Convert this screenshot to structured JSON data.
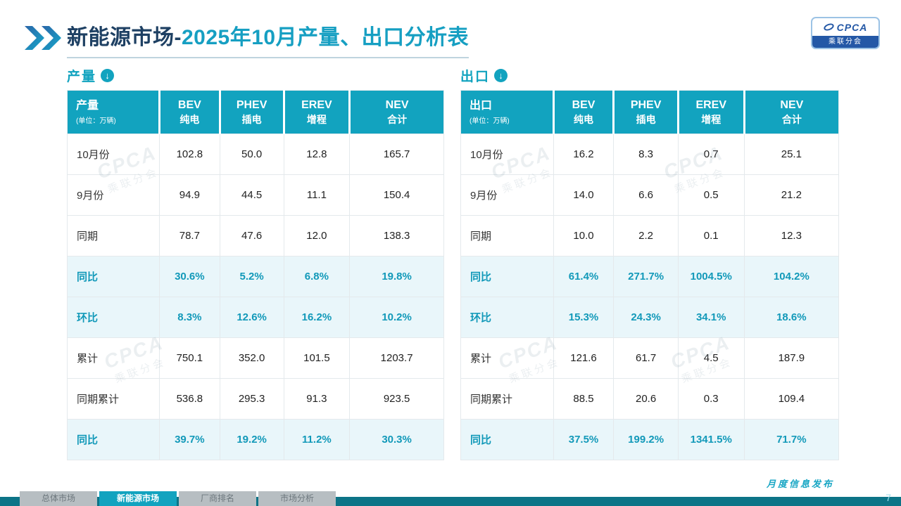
{
  "slide": {
    "title_prefix": "新能源市场-",
    "title_main": "2025年10月产量、出口分析表",
    "footer_note": "月度信息发布",
    "page_number": "7"
  },
  "logo": {
    "name": "CPCA",
    "caption": "乘联分会"
  },
  "icons": {
    "down_arrow": "↓"
  },
  "watermark": {
    "text": "CPCA",
    "subtext": "乘联分会"
  },
  "colors": {
    "accent_teal": "#12A3BF",
    "title_navy": "#1E4063",
    "highlight_row_bg": "#E9F6FA",
    "highlight_text": "#1299B9",
    "footer_bar": "#0C7487"
  },
  "nav_tabs": [
    {
      "label": "总体市场",
      "active": false
    },
    {
      "label": "新能源市场",
      "active": true
    },
    {
      "label": "厂商排名",
      "active": false
    },
    {
      "label": "市场分析",
      "active": false
    }
  ],
  "chart_data": [
    {
      "type": "table",
      "title": "产量",
      "unit": "(单位：万辆)",
      "columns": [
        {
          "code": "BEV",
          "name": "纯电"
        },
        {
          "code": "PHEV",
          "name": "插电"
        },
        {
          "code": "EREV",
          "name": "增程"
        },
        {
          "code": "NEV",
          "name": "合计"
        }
      ],
      "rows": [
        {
          "label": "10月份",
          "values": [
            "102.8",
            "50.0",
            "12.8",
            "165.7"
          ],
          "highlight": false
        },
        {
          "label": "9月份",
          "values": [
            "94.9",
            "44.5",
            "11.1",
            "150.4"
          ],
          "highlight": false
        },
        {
          "label": "同期",
          "values": [
            "78.7",
            "47.6",
            "12.0",
            "138.3"
          ],
          "highlight": false
        },
        {
          "label": "同比",
          "values": [
            "30.6%",
            "5.2%",
            "6.8%",
            "19.8%"
          ],
          "highlight": true
        },
        {
          "label": "环比",
          "values": [
            "8.3%",
            "12.6%",
            "16.2%",
            "10.2%"
          ],
          "highlight": true
        },
        {
          "label": "累计",
          "values": [
            "750.1",
            "352.0",
            "101.5",
            "1203.7"
          ],
          "highlight": false
        },
        {
          "label": "同期累计",
          "values": [
            "536.8",
            "295.3",
            "91.3",
            "923.5"
          ],
          "highlight": false
        },
        {
          "label": "同比",
          "values": [
            "39.7%",
            "19.2%",
            "11.2%",
            "30.3%"
          ],
          "highlight": true
        }
      ]
    },
    {
      "type": "table",
      "title": "出口",
      "unit": "(单位：万辆)",
      "columns": [
        {
          "code": "BEV",
          "name": "纯电"
        },
        {
          "code": "PHEV",
          "name": "插电"
        },
        {
          "code": "EREV",
          "name": "增程"
        },
        {
          "code": "NEV",
          "name": "合计"
        }
      ],
      "rows": [
        {
          "label": "10月份",
          "values": [
            "16.2",
            "8.3",
            "0.7",
            "25.1"
          ],
          "highlight": false
        },
        {
          "label": "9月份",
          "values": [
            "14.0",
            "6.6",
            "0.5",
            "21.2"
          ],
          "highlight": false
        },
        {
          "label": "同期",
          "values": [
            "10.0",
            "2.2",
            "0.1",
            "12.3"
          ],
          "highlight": false
        },
        {
          "label": "同比",
          "values": [
            "61.4%",
            "271.7%",
            "1004.5%",
            "104.2%"
          ],
          "highlight": true
        },
        {
          "label": "环比",
          "values": [
            "15.3%",
            "24.3%",
            "34.1%",
            "18.6%"
          ],
          "highlight": true
        },
        {
          "label": "累计",
          "values": [
            "121.6",
            "61.7",
            "4.5",
            "187.9"
          ],
          "highlight": false
        },
        {
          "label": "同期累计",
          "values": [
            "88.5",
            "20.6",
            "0.3",
            "109.4"
          ],
          "highlight": false
        },
        {
          "label": "同比",
          "values": [
            "37.5%",
            "199.2%",
            "1341.5%",
            "71.7%"
          ],
          "highlight": true
        }
      ]
    }
  ]
}
